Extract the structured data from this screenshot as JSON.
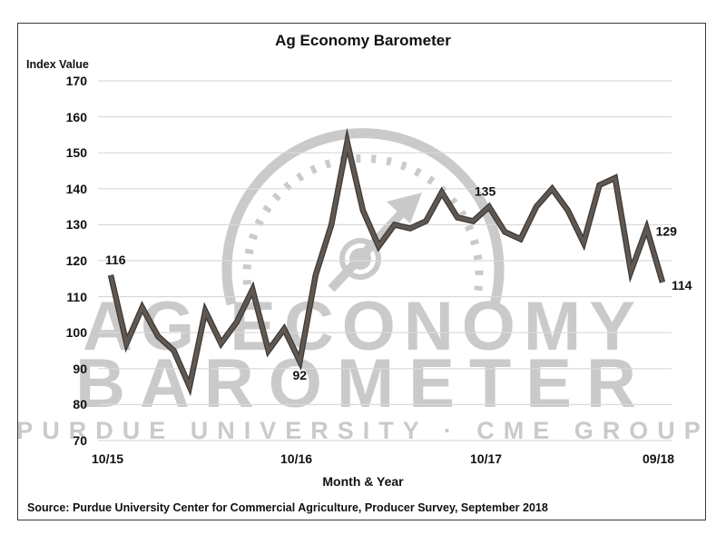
{
  "chart_data": {
    "type": "line",
    "title": "Ag Economy Barometer",
    "xlabel": "Month & Year",
    "ylabel": "Index Value",
    "ylim": [
      70,
      170
    ],
    "yticks": [
      170,
      160,
      150,
      140,
      130,
      120,
      110,
      100,
      90,
      80,
      70
    ],
    "xticks": [
      "10/15",
      "10/16",
      "10/17",
      "09/18"
    ],
    "grid": true,
    "legend": null,
    "x": [
      "10/15",
      "11/15",
      "12/15",
      "01/16",
      "02/16",
      "03/16",
      "04/16",
      "05/16",
      "06/16",
      "07/16",
      "08/16",
      "09/16",
      "10/16",
      "11/16",
      "12/16",
      "01/17",
      "02/17",
      "03/17",
      "04/17",
      "05/17",
      "06/17",
      "07/17",
      "08/17",
      "09/17",
      "10/17",
      "11/17",
      "12/17",
      "01/18",
      "02/18",
      "03/18",
      "04/18",
      "05/18",
      "06/18",
      "07/18",
      "08/18",
      "09/18"
    ],
    "series": [
      {
        "name": "Ag Economy Barometer",
        "color": "#5f5853",
        "values": [
          116,
          97,
          107,
          99,
          95,
          85,
          106,
          97,
          103,
          112,
          95,
          101,
          92,
          116,
          130,
          153,
          134,
          124,
          130,
          129,
          131,
          139,
          132,
          131,
          135,
          128,
          126,
          135,
          140,
          134,
          125,
          141,
          143,
          117,
          129,
          114
        ]
      }
    ],
    "annotations": [
      {
        "index": 0,
        "text": "116"
      },
      {
        "index": 12,
        "text": "92"
      },
      {
        "index": 24,
        "text": "135"
      },
      {
        "index": 34,
        "text": "129"
      },
      {
        "index": 35,
        "text": "114"
      }
    ],
    "source": "Source: Purdue University Center for Commercial Agriculture, Producer Survey, September 2018"
  },
  "watermark": {
    "line1": "AG ECONOMY",
    "line2": "BAROMETER",
    "line3": "PURDUE UNIVERSITY  ·  CME GROUP",
    "color": "#cacaca"
  },
  "colors": {
    "line": "#5f5853",
    "line_edge": "#3e3935",
    "grid": "#d9d9d9",
    "frame": "#3a3a3a"
  }
}
